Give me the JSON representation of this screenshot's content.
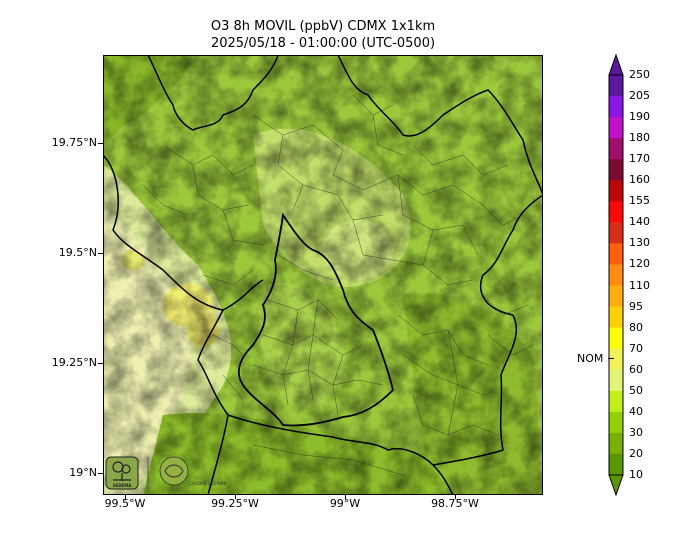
{
  "title": {
    "line1": "O3 8h MOVIL (ppbV) CDMX 1x1km",
    "line2": "2025/05/18 - 01:00:00 (UTC-0500)"
  },
  "map": {
    "lat_labels": [
      {
        "text": "19.75°N",
        "lat": 19.75
      },
      {
        "text": "19.5°N",
        "lat": 19.5
      },
      {
        "text": "19.25°N",
        "lat": 19.25
      },
      {
        "text": "19°N",
        "lat": 19.0
      }
    ],
    "lon_labels": [
      {
        "text": "99.5°W",
        "lon": -99.5
      },
      {
        "text": "99.25°W",
        "lon": -99.25
      },
      {
        "text": "99°W",
        "lon": -99.0
      },
      {
        "text": "98.75°W",
        "lon": -98.75
      }
    ],
    "extent": {
      "lat_min": 18.95,
      "lat_max": 19.95,
      "lon_min": -99.55,
      "lon_max": -98.55
    }
  },
  "colorbar": {
    "labels": [
      "250",
      "205",
      "190",
      "180",
      "170",
      "160",
      "155",
      "140",
      "130",
      "120",
      "110",
      "95",
      "80",
      "70",
      "60",
      "50",
      "40",
      "30",
      "20",
      "10"
    ],
    "colors": [
      "#5a1a9e",
      "#8a16e8",
      "#c013c8",
      "#a0106a",
      "#7a0a32",
      "#b80808",
      "#ff0808",
      "#d83018",
      "#ff6010",
      "#ff8c10",
      "#ffae10",
      "#ffd000",
      "#ffff00",
      "#f2f25a",
      "#e4f478",
      "#c0f018",
      "#92d000",
      "#78b000",
      "#5a9600"
    ],
    "nom_label": "NOM",
    "nom_value": 65
  },
  "logos": {
    "sedema": "SEDEMA",
    "second": "CALIDAD DEL AIRE"
  }
}
